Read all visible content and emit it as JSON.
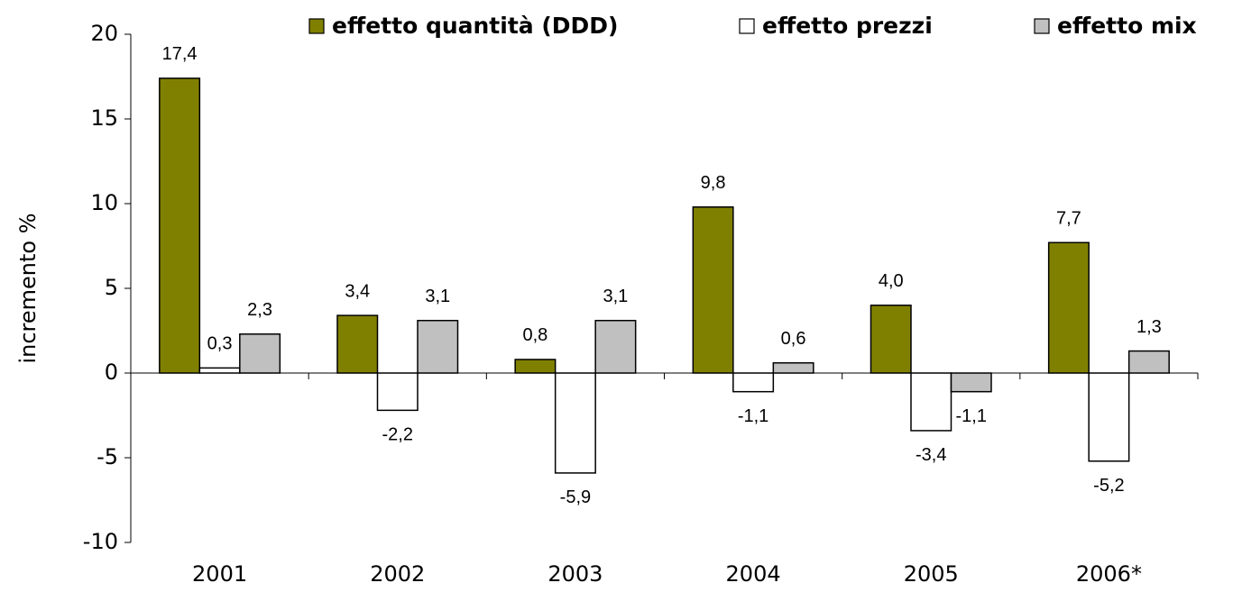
{
  "chart_data": {
    "type": "bar",
    "y_label": "incremento %",
    "categories": [
      "2001",
      "2002",
      "2003",
      "2004",
      "2005",
      "2006*"
    ],
    "series": [
      {
        "name": "effetto quantità (DDD)",
        "color": "#808000",
        "values": [
          17.4,
          3.4,
          0.8,
          9.8,
          4.0,
          7.7
        ],
        "value_labels": [
          "17,4",
          "3,4",
          "0,8",
          "9,8",
          "4,0",
          "7,7"
        ]
      },
      {
        "name": "effetto prezzi",
        "color": "#ffffff",
        "values": [
          0.3,
          -2.2,
          -5.9,
          -1.1,
          -3.4,
          -5.2
        ],
        "value_labels": [
          "0,3",
          "-2,2",
          "-5,9",
          "-1,1",
          "-3,4",
          "-5,2"
        ]
      },
      {
        "name": "effetto mix",
        "color": "#c0c0c0",
        "values": [
          2.3,
          3.1,
          3.1,
          0.6,
          -1.1,
          1.3
        ],
        "value_labels": [
          "2,3",
          "3,1",
          "3,1",
          "0,6",
          "-1,1",
          "1,3"
        ]
      }
    ],
    "ylim": [
      -10,
      20
    ],
    "yticks": [
      -10,
      -5,
      0,
      5,
      10,
      15,
      20
    ]
  }
}
